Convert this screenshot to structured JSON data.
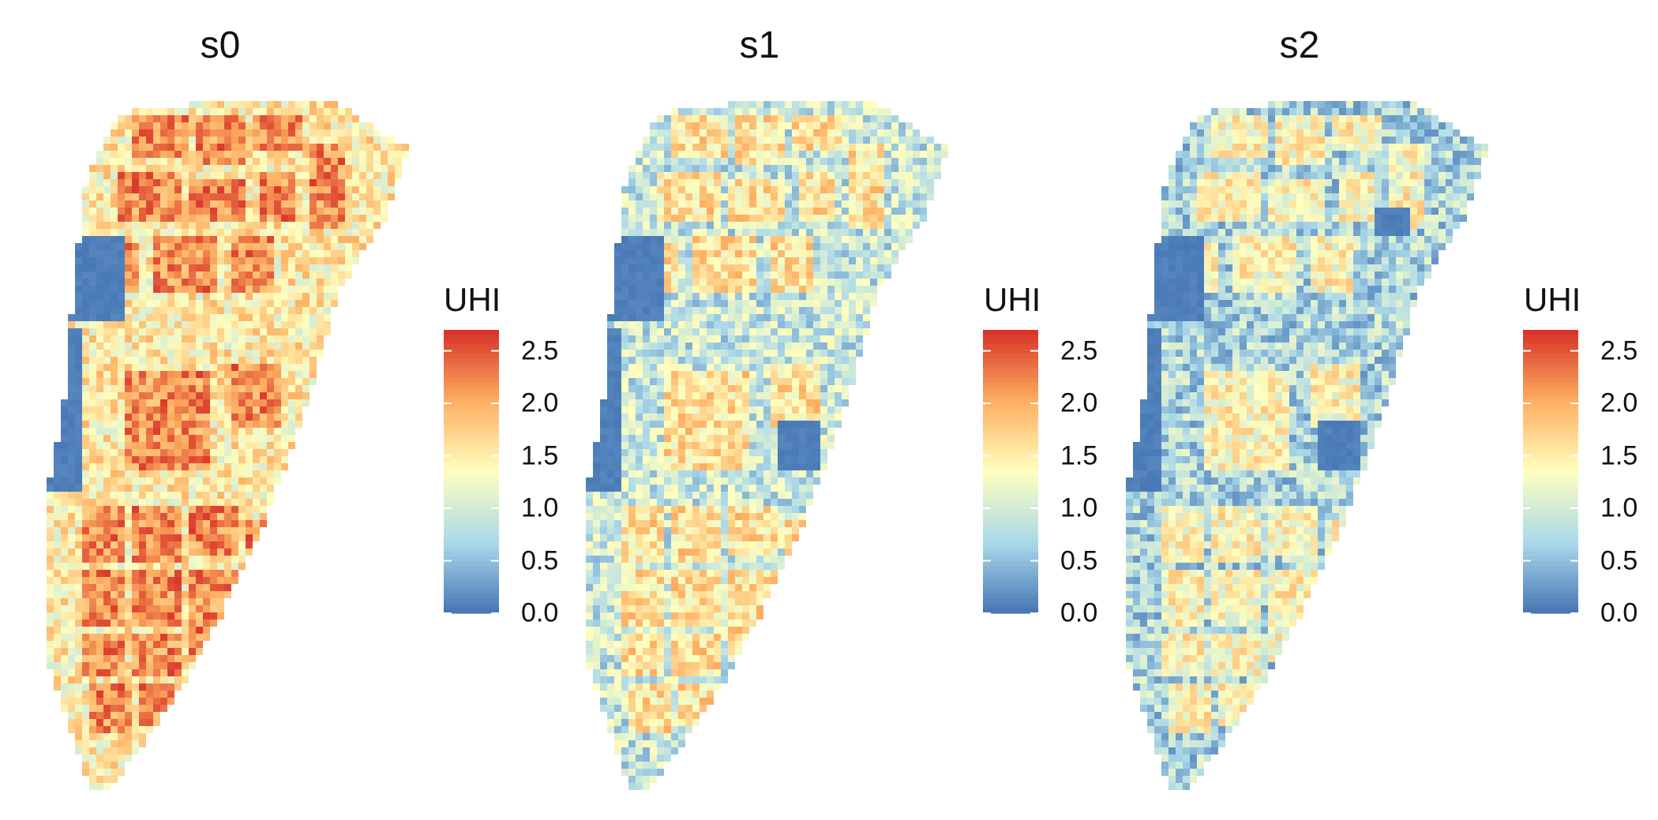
{
  "chart_data": [
    {
      "type": "heatmap",
      "title": "s0",
      "legend_title": "UHI",
      "value_range": [
        0.0,
        2.7
      ],
      "legend_ticks": [
        "0.0",
        "0.5",
        "1.0",
        "1.5",
        "2.0",
        "2.5"
      ],
      "colormap": [
        "#4575b4",
        "#abd9e9",
        "#ffffbf",
        "#fdae61",
        "#d73027"
      ],
      "overall_level": 1.85
    },
    {
      "type": "heatmap",
      "title": "s1",
      "legend_title": "UHI",
      "value_range": [
        0.0,
        2.7
      ],
      "legend_ticks": [
        "0.0",
        "0.5",
        "1.0",
        "1.5",
        "2.0",
        "2.5"
      ],
      "colormap": [
        "#4575b4",
        "#abd9e9",
        "#ffffbf",
        "#fdae61",
        "#d73027"
      ],
      "overall_level": 1.25
    },
    {
      "type": "heatmap",
      "title": "s2",
      "legend_title": "UHI",
      "value_range": [
        0.0,
        2.7
      ],
      "legend_ticks": [
        "0.0",
        "0.5",
        "1.0",
        "1.5",
        "2.0",
        "2.5"
      ],
      "colormap": [
        "#4575b4",
        "#abd9e9",
        "#ffffbf",
        "#fdae61",
        "#d73027"
      ],
      "overall_level": 1.05
    }
  ]
}
